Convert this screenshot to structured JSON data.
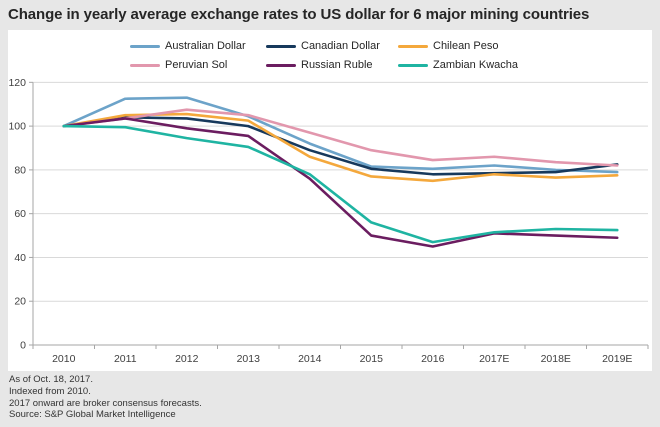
{
  "title": "Change in yearly average exchange rates to US dollar for 6 major mining countries",
  "footer": {
    "lines": [
      "As of Oct. 18, 2017.",
      "Indexed from 2010.",
      "2017 onward are broker consensus forecasts.",
      "Source: S&P Global Market Intelligence"
    ]
  },
  "style": {
    "background": "#e7e7e7",
    "panel": "#ffffff",
    "gridline": "#d9d9d9",
    "axis": "#a6a6a6",
    "tick_label": "#404040"
  },
  "chart_data": {
    "type": "line",
    "title": "Change in yearly average exchange rates to US dollar for 6 major mining countries",
    "xlabel": "",
    "ylabel": "",
    "ylim": [
      0,
      120
    ],
    "ytick_step": 20,
    "grid": true,
    "legend_position": "top",
    "categories": [
      "2010",
      "2011",
      "2012",
      "2013",
      "2014",
      "2015",
      "2016",
      "2017E",
      "2018E",
      "2019E"
    ],
    "series": [
      {
        "name": "Australian Dollar",
        "color": "#6CA3C9",
        "values": [
          100,
          112.5,
          113,
          104.5,
          92,
          81.5,
          80.5,
          82,
          80,
          79
        ]
      },
      {
        "name": "Canadian Dollar",
        "color": "#17395C",
        "values": [
          100,
          104,
          103.5,
          100,
          89,
          80.5,
          78,
          78.5,
          79,
          82.5
        ]
      },
      {
        "name": "Chilean Peso",
        "color": "#F4A83C",
        "values": [
          100,
          105,
          105.5,
          102.5,
          86,
          77,
          75,
          78,
          76.5,
          77.5
        ]
      },
      {
        "name": "Peruvian Sol",
        "color": "#E297AD",
        "values": [
          100,
          103.5,
          107.5,
          105,
          97,
          89,
          84.5,
          86,
          83.5,
          82
        ]
      },
      {
        "name": "Russian Ruble",
        "color": "#6B1D60",
        "values": [
          100,
          103.5,
          99,
          95.5,
          76,
          50,
          45,
          51,
          50,
          49
        ]
      },
      {
        "name": "Zambian Kwacha",
        "color": "#1FB4A2",
        "values": [
          100,
          99.5,
          94.5,
          90.5,
          78,
          56,
          47,
          51.5,
          53,
          52.5
        ]
      }
    ]
  }
}
